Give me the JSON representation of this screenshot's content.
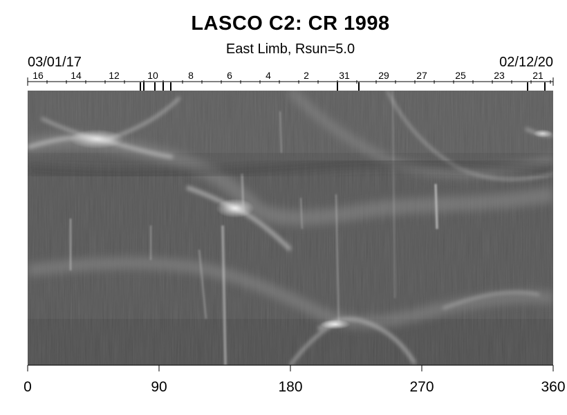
{
  "title": "LASCO C2: CR 1998",
  "subtitle": "East Limb, Rsun=5.0",
  "date_start": "03/01/17",
  "date_end": "02/12/20",
  "day_labels": [
    "16",
    "14",
    "12",
    "10",
    "8",
    "6",
    "4",
    "2",
    "31",
    "29",
    "27",
    "25",
    "23",
    "21"
  ],
  "x_tick_labels": [
    "0",
    "90",
    "180",
    "270",
    "360"
  ],
  "x_axis": {
    "min": 0,
    "max": 360,
    "ticks": [
      0,
      90,
      180,
      270,
      360
    ]
  },
  "image": {
    "description_type": "synoptic coronagraph map",
    "colormap": "grayscale",
    "background_level": "dark gray",
    "bright_features": [
      "streamer arcs",
      "CME streaks"
    ]
  }
}
